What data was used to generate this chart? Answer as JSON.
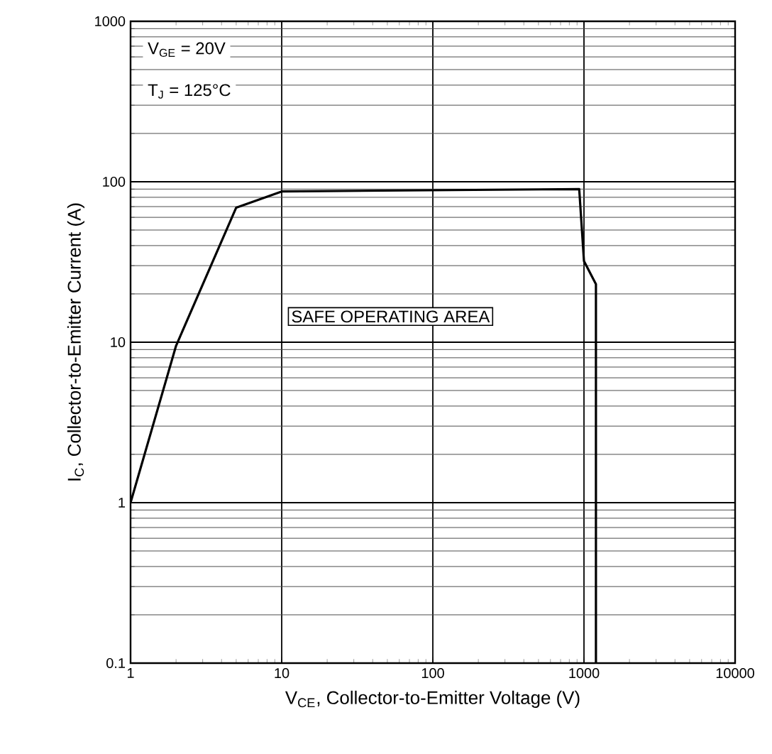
{
  "chart_data": {
    "type": "line",
    "xlabel": "V$_{CE}$, Collector-to-Emitter Voltage (V)",
    "ylabel": "I$_{C}$, Collector-to-Emitter Current (A)",
    "annotations": [
      "V$_{GE}$ = 20V",
      "T$_{J}$  = 125°C",
      "SAFE OPERATING AREA"
    ],
    "log": "xy",
    "grid": true,
    "marker": "none",
    "line_style": "solid",
    "xlim": [
      1,
      10000
    ],
    "ylim": [
      0.1,
      1000
    ],
    "xticks": [
      1,
      10,
      100,
      1000,
      10000
    ],
    "yticks": [
      0.1,
      1,
      10,
      100,
      1000
    ],
    "series": [
      {
        "color": "#000000",
        "x": [
          1,
          2,
          5,
          10,
          930,
          1000,
          1200,
          1200
        ],
        "values": [
          1,
          9.5,
          69,
          87,
          90,
          32,
          23,
          0.1
        ]
      }
    ]
  }
}
